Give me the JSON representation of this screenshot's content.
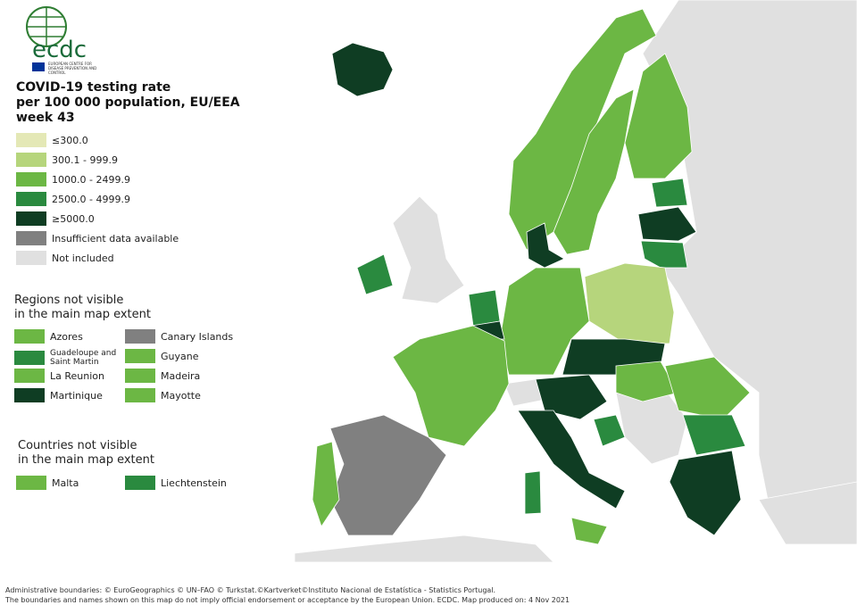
{
  "logo": {
    "text": "ecdc",
    "subtitle": "EUROPEAN CENTRE FOR DISEASE PREVENTION AND CONTROL"
  },
  "title": [
    "COVID-19 testing rate",
    "per 100 000 population, EU/EEA",
    "week 43"
  ],
  "legend": [
    {
      "label": "≤300.0",
      "color": "#e4e8b6"
    },
    {
      "label": "300.1 - 999.9",
      "color": "#b6d57c"
    },
    {
      "label": "1000.0 - 2499.9",
      "color": "#6cb744"
    },
    {
      "label": "2500.0 - 4999.9",
      "color": "#2a8a3f"
    },
    {
      "label": "≥5000.0",
      "color": "#0f3d23"
    },
    {
      "label": "Insufficient data available",
      "color": "#808080"
    },
    {
      "label": "Not included",
      "color": "#e0e0e0"
    }
  ],
  "regions": {
    "title": [
      "Regions not visible",
      "in the main map extent"
    ],
    "items": [
      {
        "label": "Azores",
        "color": "#6cb744"
      },
      {
        "label": "Guadeloupe and Saint Martin",
        "color": "#2a8a3f"
      },
      {
        "label": "La Reunion",
        "color": "#6cb744"
      },
      {
        "label": "Martinique",
        "color": "#0f3d23"
      },
      {
        "label": "Canary Islands",
        "color": "#808080"
      },
      {
        "label": "Guyane",
        "color": "#6cb744"
      },
      {
        "label": "Madeira",
        "color": "#6cb744"
      },
      {
        "label": "Mayotte",
        "color": "#6cb744"
      }
    ]
  },
  "countries": {
    "title": [
      "Countries not visible",
      "in the main map extent"
    ],
    "items": [
      {
        "label": "Malta",
        "color": "#6cb744"
      },
      {
        "label": "Liechtenstein",
        "color": "#2a8a3f"
      }
    ]
  },
  "footer": [
    "Administrative boundaries: © EuroGeographics © UN–FAO © Turkstat.©Kartverket©Instituto Nacional de Estatística - Statistics Portugal.",
    "The boundaries and names shown on this map do not imply official endorsement or acceptance by the European Union. ECDC. Map produced on: 4 Nov 2021"
  ]
}
